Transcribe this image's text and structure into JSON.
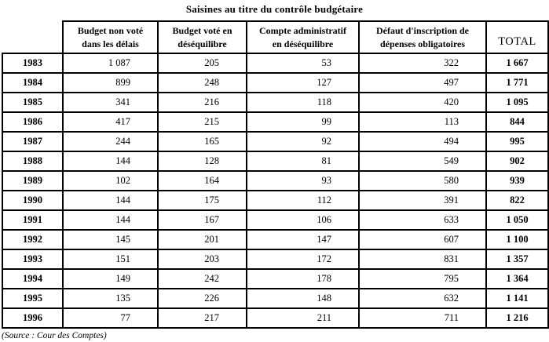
{
  "page": {
    "title": "Saisines au titre du contrôle budgétaire",
    "source": "(Source : Cour des Comptes)"
  },
  "table": {
    "columns": [
      "Budget non voté\ndans les délais",
      "Budget voté en\ndéséquilibre",
      "Compte administratif\nen déséquilibre",
      "Défaut d'inscription de\ndépenses obligatoires",
      "TOTAL"
    ],
    "rows": [
      {
        "year": "1983",
        "values": [
          "1 087",
          "205",
          "53",
          "322"
        ],
        "total": "1 667"
      },
      {
        "year": "1984",
        "values": [
          "899",
          "248",
          "127",
          "497"
        ],
        "total": "1 771"
      },
      {
        "year": "1985",
        "values": [
          "341",
          "216",
          "118",
          "420"
        ],
        "total": "1 095"
      },
      {
        "year": "1986",
        "values": [
          "417",
          "215",
          "99",
          "113"
        ],
        "total": "844"
      },
      {
        "year": "1987",
        "values": [
          "244",
          "165",
          "92",
          "494"
        ],
        "total": "995"
      },
      {
        "year": "1988",
        "values": [
          "144",
          "128",
          "81",
          "549"
        ],
        "total": "902"
      },
      {
        "year": "1989",
        "values": [
          "102",
          "164",
          "93",
          "580"
        ],
        "total": "939"
      },
      {
        "year": "1990",
        "values": [
          "144",
          "175",
          "112",
          "391"
        ],
        "total": "822"
      },
      {
        "year": "1991",
        "values": [
          "144",
          "167",
          "106",
          "633"
        ],
        "total": "1 050"
      },
      {
        "year": "1992",
        "values": [
          "145",
          "201",
          "147",
          "607"
        ],
        "total": "1 100"
      },
      {
        "year": "1993",
        "values": [
          "151",
          "203",
          "172",
          "831"
        ],
        "total": "1 357"
      },
      {
        "year": "1994",
        "values": [
          "149",
          "242",
          "178",
          "795"
        ],
        "total": "1 364"
      },
      {
        "year": "1995",
        "values": [
          "135",
          "226",
          "148",
          "632"
        ],
        "total": "1 141"
      },
      {
        "year": "1996",
        "values": [
          "77",
          "217",
          "211",
          "711"
        ],
        "total": "1 216"
      }
    ]
  }
}
